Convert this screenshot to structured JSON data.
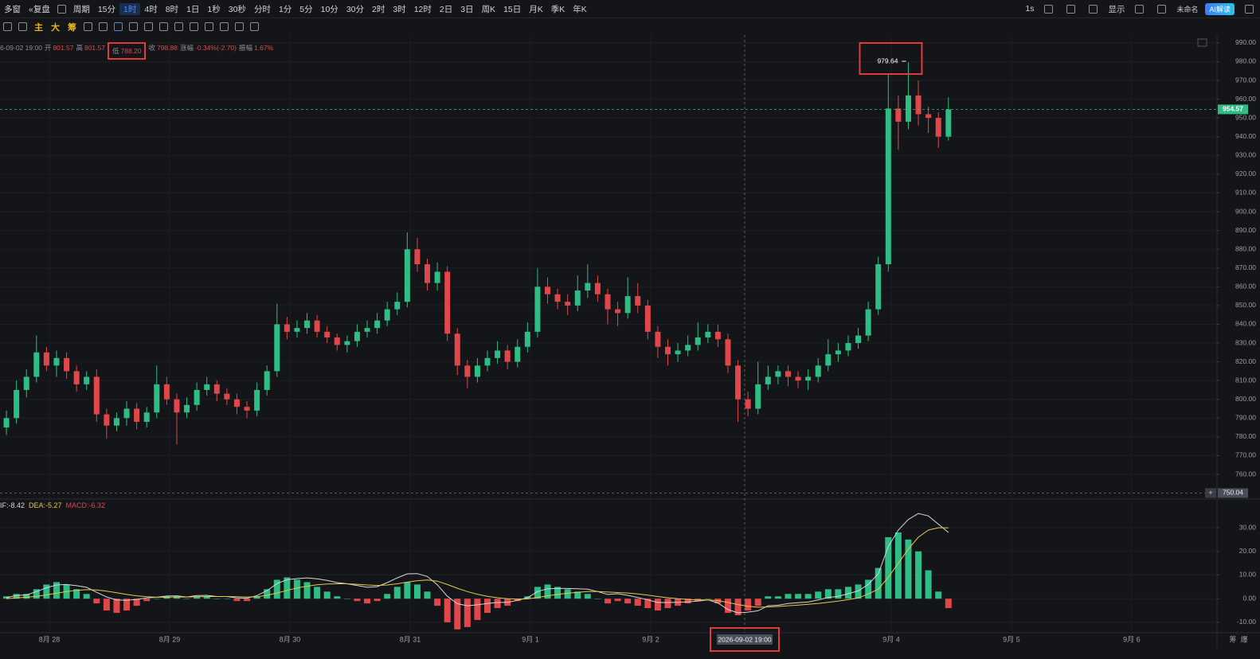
{
  "toolbar": {
    "windows": "多窗",
    "replay": "复盘",
    "period": "周期",
    "periods": [
      "15分",
      "1时",
      "4时",
      "8时",
      "1日",
      "1秒",
      "30秒",
      "分时",
      "1分",
      "5分",
      "10分",
      "30分",
      "2时",
      "3时",
      "12时",
      "2日",
      "3日",
      "周K",
      "15日",
      "月K",
      "季K",
      "年K"
    ],
    "active_period": 1,
    "interval": "1s",
    "display": "显示",
    "workspace": "未命名",
    "ai": "AI解读"
  },
  "drawing_toolbar": {
    "labels": [
      "主",
      "大",
      "筹"
    ]
  },
  "axis_corner": [
    "筹",
    "爆"
  ],
  "chart_data": [
    {
      "type": "candlestick",
      "info_header": {
        "time": "6-09-02 19:00",
        "items": [
          {
            "label": "开",
            "value": "801.57"
          },
          {
            "label": "高",
            "value": "801.57"
          },
          {
            "label": "低",
            "value": "788.20"
          },
          {
            "label": "收",
            "value": "798.88"
          },
          {
            "label": "涨幅",
            "value": "-0.34%(-2.70)"
          },
          {
            "label": "振幅",
            "value": "1.67%"
          }
        ]
      },
      "up_color": "#2ebd85",
      "down_color": "#e0474b",
      "grid": true,
      "xlim": [
        -0.64,
        120.8
      ],
      "xticks": [
        {
          "value": 4.29,
          "label": "8月 28"
        },
        {
          "value": 16.29,
          "label": "8月 29"
        },
        {
          "value": 28.29,
          "label": "8月 30"
        },
        {
          "value": 40.29,
          "label": "8月 31"
        },
        {
          "value": 52.29,
          "label": "9月 1"
        },
        {
          "value": 64.29,
          "label": "9月 2"
        },
        {
          "value": 88.29,
          "label": "9月 4"
        },
        {
          "value": 100.29,
          "label": "9月 5"
        },
        {
          "value": 112.29,
          "label": "9月 6"
        }
      ],
      "ylim": [
        747.7,
        994.2
      ],
      "yticks": [
        {
          "value": 760,
          "label": "760.00"
        },
        {
          "value": 770,
          "label": "770.00"
        },
        {
          "value": 780,
          "label": "780.00"
        },
        {
          "value": 790,
          "label": "790.00"
        },
        {
          "value": 800,
          "label": "800.00"
        },
        {
          "value": 810,
          "label": "810.00"
        },
        {
          "value": 820,
          "label": "820.00"
        },
        {
          "value": 830,
          "label": "830.00"
        },
        {
          "value": 840,
          "label": "840.00"
        },
        {
          "value": 850,
          "label": "850.00"
        },
        {
          "value": 860,
          "label": "860.00"
        },
        {
          "value": 870,
          "label": "870.00"
        },
        {
          "value": 880,
          "label": "880.00"
        },
        {
          "value": 890,
          "label": "890.00"
        },
        {
          "value": 900,
          "label": "900.00"
        },
        {
          "value": 910,
          "label": "910.00"
        },
        {
          "value": 920,
          "label": "920.00"
        },
        {
          "value": 930,
          "label": "930.00"
        },
        {
          "value": 940,
          "label": "940.00"
        },
        {
          "value": 950,
          "label": "950.00"
        },
        {
          "value": 960,
          "label": "960.00"
        },
        {
          "value": 970,
          "label": "970.00"
        },
        {
          "value": 980,
          "label": "980.00"
        },
        {
          "value": 990,
          "label": "990.00"
        }
      ],
      "open": [
        785,
        790,
        805,
        812,
        825,
        818,
        822,
        815,
        808,
        812,
        792,
        786,
        790,
        795,
        788,
        793,
        808,
        800,
        793,
        797,
        805,
        808,
        803,
        800,
        796,
        794,
        805,
        815,
        840,
        836,
        838,
        842,
        836,
        833,
        829,
        831,
        836,
        838,
        842,
        848,
        852,
        880,
        872,
        862,
        868,
        835,
        818,
        812,
        818,
        822,
        826,
        820,
        828,
        836,
        860,
        856,
        852,
        850,
        858,
        862,
        856,
        848,
        846,
        855,
        850,
        836,
        828,
        824,
        826,
        829,
        833,
        836,
        832,
        818,
        800,
        795,
        808,
        812,
        815,
        812,
        810,
        812,
        818,
        824,
        826,
        830,
        834,
        848,
        872,
        955,
        948,
        962,
        952,
        950,
        940
      ],
      "high": [
        794,
        810,
        816,
        834,
        828,
        826,
        825,
        818,
        815,
        816,
        795,
        793,
        799,
        798,
        796,
        818,
        812,
        803,
        801,
        809,
        812,
        810,
        806,
        803,
        799,
        809,
        818,
        851,
        844,
        842,
        846,
        845,
        839,
        835,
        834,
        840,
        842,
        846,
        852,
        857,
        889,
        886,
        875,
        873,
        871,
        838,
        821,
        822,
        826,
        831,
        829,
        832,
        841,
        870,
        865,
        859,
        856,
        866,
        872,
        866,
        859,
        852,
        865,
        862,
        853,
        839,
        832,
        830,
        834,
        841,
        840,
        840,
        835,
        821,
        804,
        820,
        818,
        818,
        818,
        815,
        816,
        822,
        832,
        830,
        834,
        838,
        852,
        876,
        973,
        962,
        979.64,
        970,
        956,
        953,
        961
      ],
      "low": [
        781,
        787,
        801,
        809,
        815,
        812,
        811,
        804,
        805,
        788,
        779,
        783,
        786,
        784,
        785,
        790,
        797,
        776,
        790,
        794,
        802,
        799,
        797,
        792,
        790,
        791,
        802,
        812,
        832,
        833,
        835,
        833,
        830,
        826,
        825,
        828,
        833,
        835,
        839,
        845,
        849,
        868,
        858,
        858,
        831,
        813,
        806,
        809,
        815,
        819,
        816,
        817,
        825,
        833,
        851,
        848,
        845,
        847,
        854,
        852,
        840,
        839,
        843,
        846,
        832,
        822,
        818,
        820,
        823,
        826,
        830,
        828,
        814,
        788,
        791,
        792,
        805,
        808,
        807,
        806,
        805,
        809,
        815,
        820,
        823,
        827,
        831,
        845,
        868,
        933,
        944,
        946,
        942,
        934,
        938
      ],
      "close": [
        790,
        805,
        812,
        825,
        818,
        822,
        815,
        808,
        812,
        792,
        786,
        790,
        795,
        788,
        793,
        808,
        800,
        793,
        797,
        805,
        808,
        803,
        800,
        796,
        794,
        805,
        815,
        840,
        836,
        838,
        842,
        836,
        833,
        829,
        831,
        836,
        838,
        842,
        848,
        852,
        880,
        872,
        862,
        868,
        835,
        818,
        812,
        818,
        822,
        826,
        820,
        828,
        836,
        860,
        856,
        852,
        850,
        858,
        862,
        856,
        848,
        846,
        855,
        850,
        836,
        828,
        824,
        826,
        829,
        833,
        836,
        832,
        818,
        800,
        795,
        808,
        812,
        815,
        812,
        810,
        812,
        818,
        824,
        826,
        830,
        834,
        848,
        872,
        955,
        948,
        962,
        952,
        950,
        940,
        954.57
      ],
      "annotation_index": 90,
      "crosshair": {
        "time": "2026-09-02 19:00",
        "price": 750.04
      }
    },
    {
      "type": "macd",
      "header": [
        {
          "text": "IF:-8.42",
          "color": "#d8d8d8"
        },
        {
          "text": "DEA:-5.27",
          "color": "#e6c84a"
        },
        {
          "text": "MACD:-6.32",
          "color": "#e0474b"
        }
      ],
      "xlim": [
        -0.64,
        120.8
      ],
      "ylim": [
        -14.4,
        41.8
      ],
      "yticks": [
        {
          "value": -10,
          "label": "-10.00"
        },
        {
          "value": 0,
          "label": "0.00"
        },
        {
          "value": 10,
          "label": "10.00"
        },
        {
          "value": 20,
          "label": "20.00"
        },
        {
          "value": 30,
          "label": "30.00"
        }
      ],
      "up_color": "#2ebd85",
      "down_color": "#e0474b",
      "grid": true,
      "series": [
        {
          "color": "#d8d8d8",
          "values": [
            0.5,
            1.3,
            1.6,
            3,
            4.6,
            5.8,
            6,
            5.5,
            4.8,
            2.7,
            0.7,
            -0.5,
            -0.7,
            -0.3,
            0.3,
            0.6,
            1.1,
            1.2,
            0.7,
            1.3,
            1.4,
            0.9,
            0.9,
            0.3,
            0.2,
            1.3,
            3.4,
            6.4,
            8,
            8.5,
            8.8,
            8.4,
            7.7,
            6.8,
            6.3,
            5.6,
            4.8,
            5.1,
            6.8,
            8.8,
            10.5,
            10.6,
            9.4,
            5.9,
            1,
            -2.1,
            -3,
            -2.6,
            -2,
            -1.6,
            -1.5,
            -0.7,
            0.4,
            3,
            4.2,
            4.3,
            4.3,
            4.2,
            4,
            3,
            1.8,
            2.1,
            1.4,
            0.5,
            -0.5,
            -1.6,
            -1.6,
            -1.5,
            -1.3,
            -1,
            -0.5,
            -1.8,
            -4.6,
            -6,
            -5.7,
            -5.1,
            -3,
            -2.8,
            -2,
            -1.7,
            -1.4,
            -0.5,
            0.5,
            1,
            2.1,
            3.3,
            6,
            10.5,
            22,
            29,
            33.5,
            36,
            35,
            31.5,
            28
          ]
        },
        {
          "color": "#e6c84a",
          "values": [
            0,
            0.3,
            0.6,
            1,
            1.6,
            2.3,
            3,
            3.5,
            3.8,
            3.7,
            3.2,
            2.5,
            1.8,
            1.2,
            0.8,
            0.6,
            0.6,
            0.7,
            0.7,
            0.8,
            0.9,
            0.9,
            0.9,
            0.8,
            0.7,
            0.8,
            1.4,
            2.4,
            3.5,
            4.5,
            5.3,
            5.9,
            6.2,
            6.3,
            6.3,
            6.1,
            5.8,
            5.6,
            5.8,
            6.3,
            7,
            7.6,
            7.9,
            7.4,
            6,
            4.4,
            3,
            1.9,
            1,
            0.4,
            0,
            -0.2,
            -0.1,
            0.5,
            1.2,
            1.8,
            2.3,
            2.7,
            3,
            3,
            2.8,
            2.6,
            2.4,
            2,
            1.5,
            0.9,
            0.4,
            0,
            -0.3,
            -0.5,
            -0.5,
            -0.8,
            -1.6,
            -2.5,
            -3.2,
            -3.6,
            -3.5,
            -3.3,
            -3,
            -2.7,
            -2.4,
            -2,
            -1.5,
            -1,
            -0.4,
            0.3,
            2,
            4,
            9,
            15,
            21,
            26,
            29,
            30,
            30
          ]
        }
      ],
      "histogram": [
        1,
        2,
        2,
        4,
        6,
        7,
        6,
        4,
        2,
        -2,
        -5,
        -6,
        -5,
        -3,
        -1,
        0,
        1,
        1,
        0,
        1,
        1,
        0,
        0,
        -1,
        -1,
        1,
        4,
        8,
        9,
        8,
        7,
        5,
        3,
        1,
        0,
        -1,
        -2,
        -1,
        2,
        5,
        7,
        6,
        3,
        -3,
        -10,
        -13,
        -12,
        -9,
        -6,
        -4,
        -3,
        -1,
        1,
        5,
        6,
        5,
        4,
        3,
        2,
        0,
        -2,
        -1,
        -2,
        -3,
        -4,
        -5,
        -4,
        -3,
        -2,
        -1,
        0,
        -2,
        -6,
        -7,
        -5,
        -3,
        1,
        1,
        2,
        2,
        2,
        3,
        4,
        4,
        5,
        6,
        8,
        13,
        26,
        28,
        25,
        20,
        12,
        3,
        -4
      ]
    }
  ]
}
